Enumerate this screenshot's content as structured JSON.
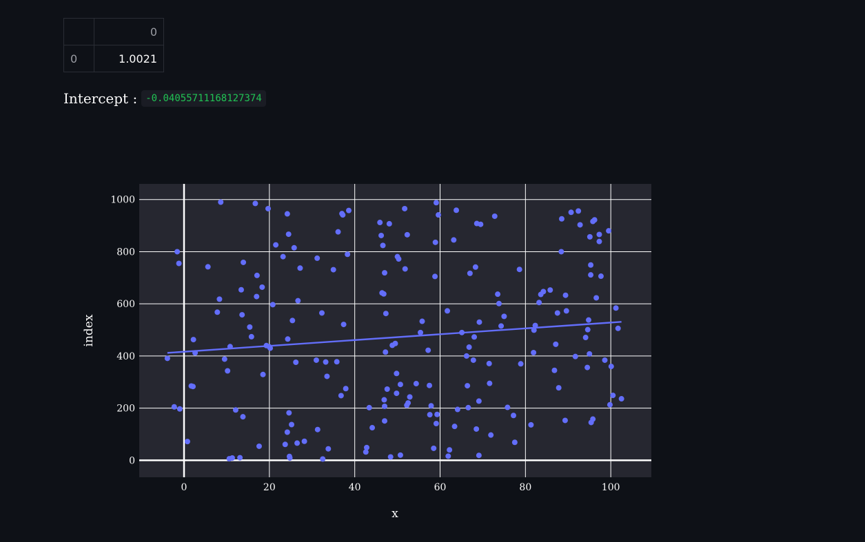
{
  "table": {
    "column_header": "0",
    "rows": [
      {
        "index": "0",
        "value": "1.0021"
      }
    ]
  },
  "intercept": {
    "label": "Intercept :",
    "value": "-0.04055711168127374"
  },
  "colors": {
    "background": "#0e1117",
    "plot_background": "#262730",
    "marker": "#636efa",
    "grid": "#ffffff",
    "code_text": "#21c354"
  },
  "chart_data": {
    "type": "scatter",
    "xlabel": "x",
    "ylabel": "index",
    "xlim": [
      -10.5,
      109.5
    ],
    "ylim": [
      -65,
      1060
    ],
    "xticks": [
      0,
      20,
      40,
      60,
      80,
      100
    ],
    "yticks": [
      0,
      200,
      400,
      600,
      800,
      1000
    ],
    "grid": true,
    "trendline": {
      "x": [
        -3.9,
        102.5
      ],
      "y": [
        412,
        531
      ]
    },
    "points": [
      [
        -3.9,
        391
      ],
      [
        -2.3,
        205
      ],
      [
        -1.6,
        800
      ],
      [
        -1.2,
        755
      ],
      [
        -1,
        197
      ],
      [
        0.8,
        72
      ],
      [
        1.7,
        285
      ],
      [
        2.1,
        283
      ],
      [
        2.2,
        463
      ],
      [
        2.6,
        412
      ],
      [
        5.6,
        742
      ],
      [
        7.8,
        568
      ],
      [
        8.3,
        618
      ],
      [
        8.6,
        990
      ],
      [
        9.5,
        388
      ],
      [
        10.2,
        343
      ],
      [
        10.6,
        6
      ],
      [
        10.8,
        436
      ],
      [
        11.3,
        9
      ],
      [
        12.1,
        193
      ],
      [
        13.1,
        10
      ],
      [
        13.4,
        654
      ],
      [
        13.6,
        558
      ],
      [
        13.8,
        167
      ],
      [
        13.9,
        759
      ],
      [
        15.4,
        511
      ],
      [
        15.8,
        474
      ],
      [
        16.7,
        985
      ],
      [
        17,
        628
      ],
      [
        17.1,
        709
      ],
      [
        17.6,
        54
      ],
      [
        18.3,
        664
      ],
      [
        18.5,
        329
      ],
      [
        19.3,
        440
      ],
      [
        19.7,
        965
      ],
      [
        20,
        435
      ],
      [
        20.2,
        430
      ],
      [
        20.8,
        597
      ],
      [
        21.5,
        826
      ],
      [
        23.2,
        781
      ],
      [
        23.7,
        61
      ],
      [
        24.2,
        945
      ],
      [
        24.2,
        108
      ],
      [
        24.3,
        465
      ],
      [
        24.5,
        867
      ],
      [
        24.6,
        182
      ],
      [
        24.7,
        15
      ],
      [
        24.8,
        9
      ],
      [
        25.2,
        137
      ],
      [
        25.4,
        536
      ],
      [
        25.8,
        815
      ],
      [
        26.2,
        376
      ],
      [
        26.5,
        66
      ],
      [
        26.7,
        612
      ],
      [
        27.2,
        737
      ],
      [
        28.2,
        73
      ],
      [
        31,
        384
      ],
      [
        31.2,
        775
      ],
      [
        31.3,
        118
      ],
      [
        32.3,
        565
      ],
      [
        32.5,
        5
      ],
      [
        33.2,
        377
      ],
      [
        33.5,
        322
      ],
      [
        33.8,
        44
      ],
      [
        35,
        731
      ],
      [
        35.8,
        378
      ],
      [
        36.1,
        876
      ],
      [
        36.8,
        248
      ],
      [
        37,
        946
      ],
      [
        37.2,
        941
      ],
      [
        37.4,
        521
      ],
      [
        37.9,
        275
      ],
      [
        38.3,
        790
      ],
      [
        38.6,
        958
      ],
      [
        42.6,
        32
      ],
      [
        42.8,
        49
      ],
      [
        43.4,
        202
      ],
      [
        44.1,
        125
      ],
      [
        45.9,
        912
      ],
      [
        46.2,
        862
      ],
      [
        46.4,
        642
      ],
      [
        46.6,
        824
      ],
      [
        46.8,
        638
      ],
      [
        46.9,
        232
      ],
      [
        47,
        719
      ],
      [
        47,
        207
      ],
      [
        47,
        151
      ],
      [
        47.2,
        415
      ],
      [
        47.3,
        563
      ],
      [
        47.6,
        273
      ],
      [
        48.1,
        907
      ],
      [
        48.4,
        13
      ],
      [
        48.8,
        441
      ],
      [
        49.5,
        448
      ],
      [
        49.8,
        333
      ],
      [
        49.8,
        257
      ],
      [
        50,
        781
      ],
      [
        50.3,
        772
      ],
      [
        50.7,
        291
      ],
      [
        50.7,
        20
      ],
      [
        51.7,
        965
      ],
      [
        51.8,
        734
      ],
      [
        52.2,
        211
      ],
      [
        52.3,
        865
      ],
      [
        52.5,
        220
      ],
      [
        52.9,
        243
      ],
      [
        54.4,
        294
      ],
      [
        55.4,
        490
      ],
      [
        55.8,
        533
      ],
      [
        57.2,
        422
      ],
      [
        57.5,
        287
      ],
      [
        57.6,
        175
      ],
      [
        57.9,
        209
      ],
      [
        58.5,
        46
      ],
      [
        58.8,
        705
      ],
      [
        58.9,
        836
      ],
      [
        59.1,
        141
      ],
      [
        59.1,
        988
      ],
      [
        59.3,
        176
      ],
      [
        59.6,
        941
      ],
      [
        61.7,
        573
      ],
      [
        61.9,
        16
      ],
      [
        62.2,
        40
      ],
      [
        63.2,
        845
      ],
      [
        63.4,
        130
      ],
      [
        63.8,
        959
      ],
      [
        64.1,
        195
      ],
      [
        65.1,
        490
      ],
      [
        66.2,
        400
      ],
      [
        66.4,
        286
      ],
      [
        66.6,
        202
      ],
      [
        66.8,
        434
      ],
      [
        67,
        717
      ],
      [
        67.8,
        384
      ],
      [
        68,
        473
      ],
      [
        68.3,
        741
      ],
      [
        68.5,
        120
      ],
      [
        68.6,
        908
      ],
      [
        69.1,
        19
      ],
      [
        69.1,
        227
      ],
      [
        69.2,
        530
      ],
      [
        69.5,
        905
      ],
      [
        71.5,
        371
      ],
      [
        71.6,
        295
      ],
      [
        71.9,
        97
      ],
      [
        72.8,
        936
      ],
      [
        73.5,
        637
      ],
      [
        73.8,
        601
      ],
      [
        74.3,
        515
      ],
      [
        75,
        552
      ],
      [
        75.8,
        203
      ],
      [
        77.2,
        172
      ],
      [
        77.5,
        69
      ],
      [
        78.6,
        732
      ],
      [
        78.9,
        370
      ],
      [
        81.3,
        136
      ],
      [
        81.9,
        413
      ],
      [
        82,
        499
      ],
      [
        82.3,
        517
      ],
      [
        83.2,
        605
      ],
      [
        83.6,
        636
      ],
      [
        84.2,
        647
      ],
      [
        85.8,
        653
      ],
      [
        86.8,
        345
      ],
      [
        87.1,
        445
      ],
      [
        87.5,
        565
      ],
      [
        87.8,
        278
      ],
      [
        88.4,
        800
      ],
      [
        88.5,
        926
      ],
      [
        89.3,
        153
      ],
      [
        89.4,
        633
      ],
      [
        89.6,
        573
      ],
      [
        90.7,
        951
      ],
      [
        91.7,
        398
      ],
      [
        92.4,
        956
      ],
      [
        92.8,
        903
      ],
      [
        94.1,
        471
      ],
      [
        94.5,
        356
      ],
      [
        94.6,
        501
      ],
      [
        94.8,
        538
      ],
      [
        95,
        408
      ],
      [
        95.1,
        857
      ],
      [
        95.3,
        711
      ],
      [
        95.3,
        749
      ],
      [
        95.4,
        145
      ],
      [
        95.8,
        158
      ],
      [
        95.8,
        916
      ],
      [
        96.2,
        922
      ],
      [
        96.6,
        623
      ],
      [
        97.3,
        839
      ],
      [
        97.3,
        866
      ],
      [
        97.7,
        706
      ],
      [
        98.6,
        384
      ],
      [
        99.5,
        880
      ],
      [
        99.8,
        213
      ],
      [
        100.1,
        360
      ],
      [
        100.5,
        249
      ],
      [
        101.2,
        584
      ],
      [
        101.7,
        506
      ],
      [
        102.5,
        236
      ]
    ]
  }
}
